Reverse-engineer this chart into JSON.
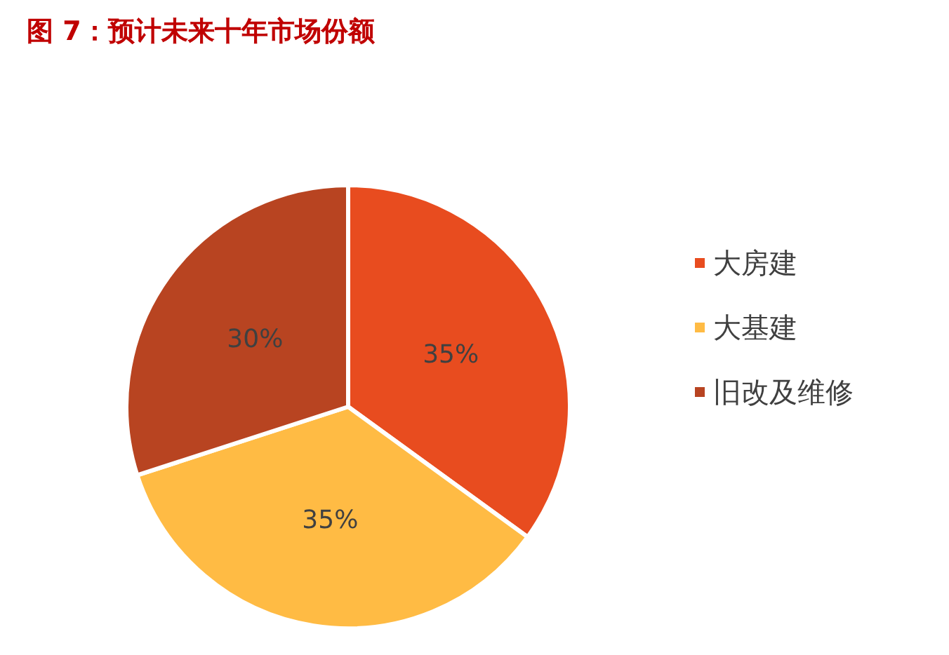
{
  "chart_data": {
    "type": "pie",
    "title": "图 7：预计未来十年市场份额",
    "categories": [
      "大房建",
      "大基建",
      "旧改及维修"
    ],
    "values": [
      35,
      35,
      30
    ],
    "colors": [
      "#e84c1f",
      "#ffbb44",
      "#b84421"
    ],
    "value_labels": [
      "35%",
      "35%",
      "30%"
    ],
    "legend": "right"
  }
}
